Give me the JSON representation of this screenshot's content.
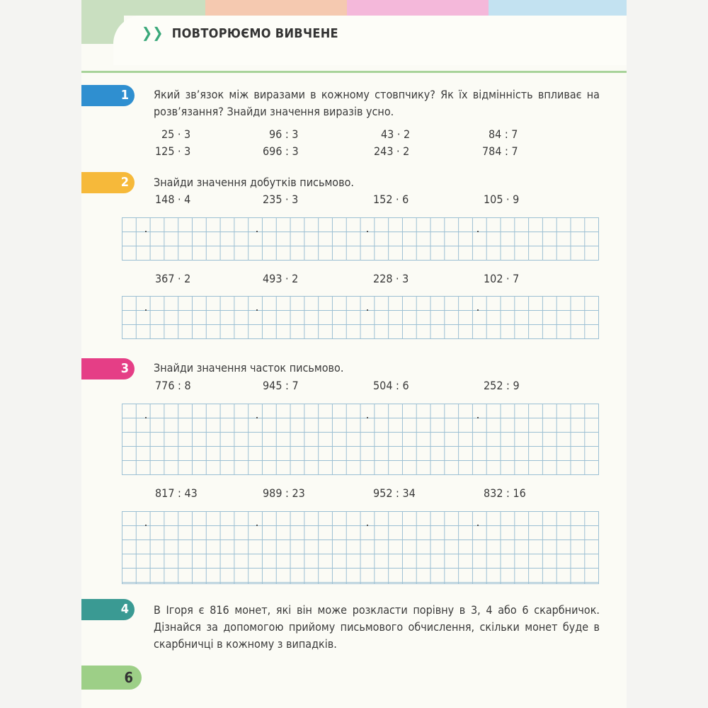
{
  "header": {
    "title": "ПОВТОРЮЄМО ВИВЧЕНЕ",
    "icon": "double-chevron-icon"
  },
  "colors": {
    "band_green": "#c9dfc0",
    "band_peach": "#f5c9b0",
    "band_pink": "#f4b8da",
    "band_blue": "#c3e2f1",
    "task1": "#2f8fd0",
    "task2": "#f6b93a",
    "task3": "#e53e86",
    "task4": "#3a9a93",
    "page": "#9dcf87"
  },
  "tasks": [
    {
      "number": "1",
      "text": "Який зв’язок між виразами в кожному стовпчику? Як їх відмінність впливає на розв’язання? Знайди значення виразів усно.",
      "rows": [
        [
          "25 · 3",
          "96 : 3",
          "43 · 2",
          "84 : 7"
        ],
        [
          "125 · 3",
          "696 : 3",
          "243 · 2",
          "784 : 7"
        ]
      ]
    },
    {
      "number": "2",
      "text": "Знайди значення добутків письмово.",
      "rows": [
        [
          "148 · 4",
          "235 · 3",
          "152 · 6",
          "105 · 9"
        ],
        [
          "367 · 2",
          "493 · 2",
          "228 · 3",
          "102 · 7"
        ]
      ]
    },
    {
      "number": "3",
      "text": "Знайди значення часток письмово.",
      "rows": [
        [
          "776 : 8",
          "945 : 7",
          "504 : 6",
          "252 : 9"
        ],
        [
          "817 : 43",
          "989 : 23",
          "952 : 34",
          "832 : 16"
        ]
      ]
    },
    {
      "number": "4",
      "text": "В Ігоря є 816 монет, які він може розкласти порівну в 3, 4 або 6 скарбничок. Дізнайся за допомогою прийому письмового обчислення, скільки монет буде в скарбничці в кожному з випадків."
    }
  ],
  "page_number": "6"
}
